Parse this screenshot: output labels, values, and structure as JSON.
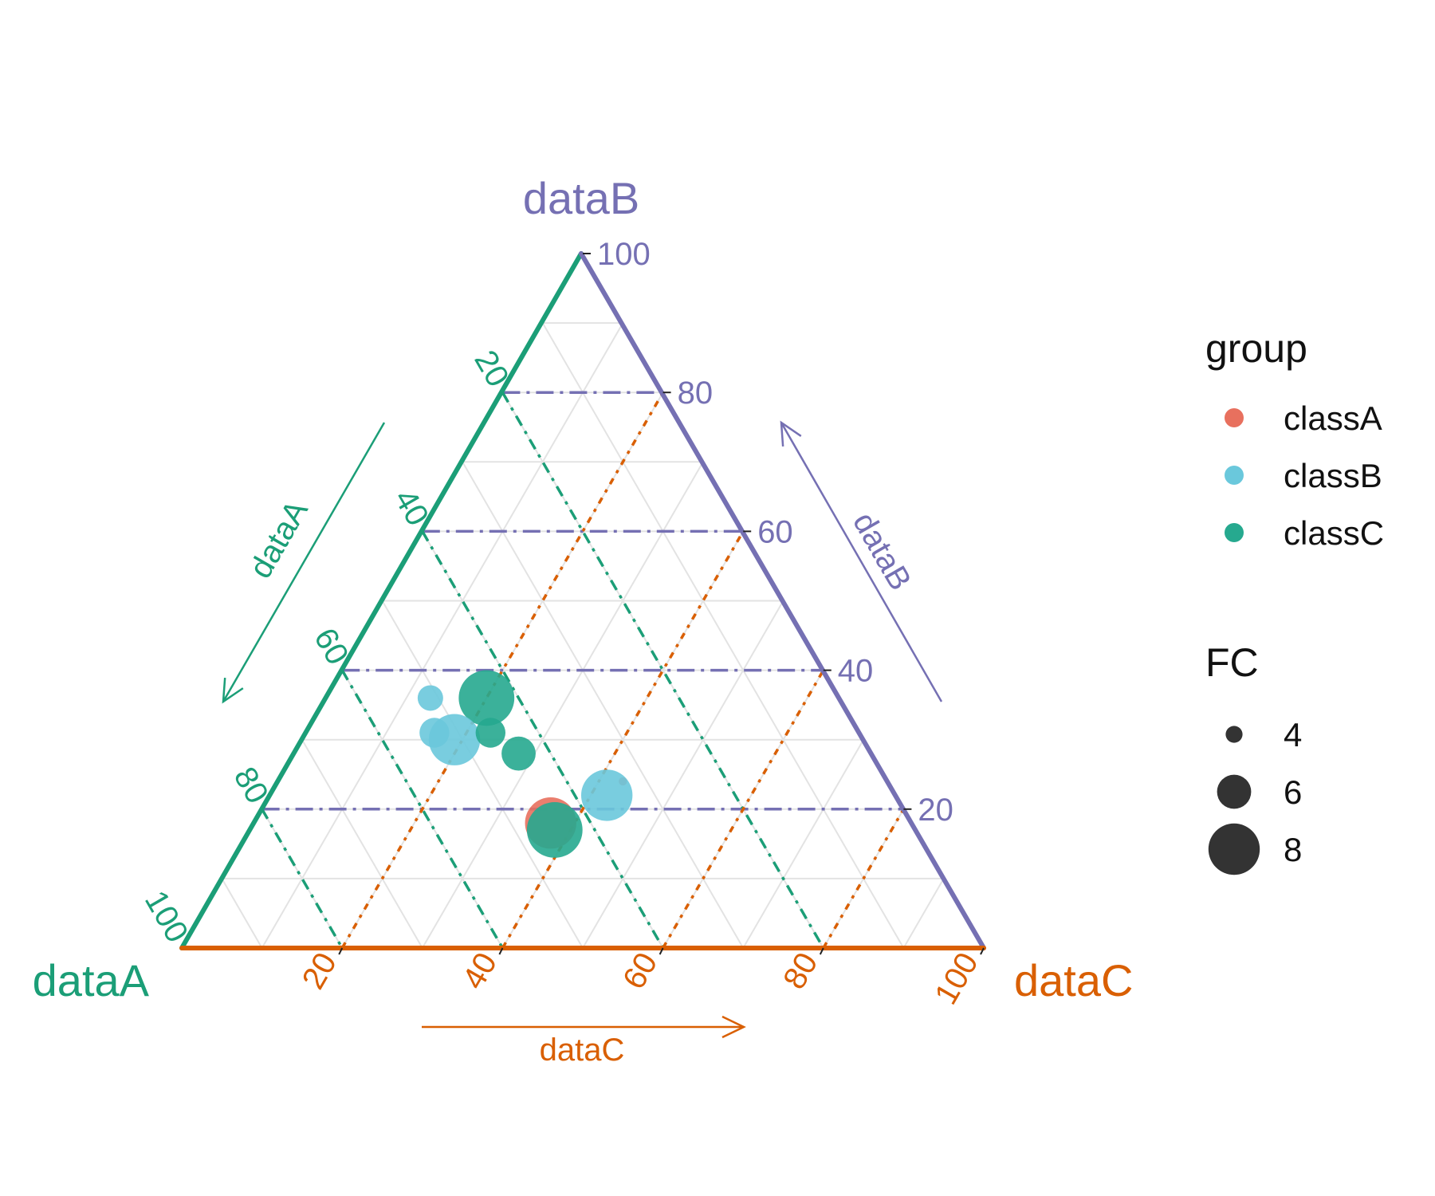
{
  "chart_data": {
    "type": "scatter",
    "subtype": "ternary",
    "title": "",
    "axes": {
      "A": {
        "label": "dataA",
        "arrow_label": "dataA",
        "color": "#1b9e77",
        "ticks": [
          20,
          40,
          60,
          80,
          100
        ]
      },
      "B": {
        "label": "dataB",
        "arrow_label": "dataB",
        "color": "#7570b3",
        "ticks": [
          20,
          40,
          60,
          80,
          100
        ]
      },
      "C": {
        "label": "dataC",
        "arrow_label": "dataC",
        "color": "#d95f02",
        "ticks": [
          20,
          40,
          60,
          80,
          100
        ]
      }
    },
    "grid": true,
    "reference_lines": {
      "A": [
        20,
        40,
        60,
        80
      ],
      "B": [
        20,
        40,
        60,
        80
      ],
      "C": [
        20,
        40,
        60,
        80
      ]
    },
    "groups": [
      {
        "name": "classA",
        "color": "#e8705e"
      },
      {
        "name": "classB",
        "color": "#6ac8dc"
      },
      {
        "name": "classC",
        "color": "#26a98f"
      }
    ],
    "points": [
      {
        "group": "classB",
        "A": 51,
        "B": 36,
        "C": 13,
        "FC": 5
      },
      {
        "group": "classC",
        "A": 44,
        "B": 36,
        "C": 20,
        "FC": 8.5
      },
      {
        "group": "classB",
        "A": 53,
        "B": 31,
        "C": 16,
        "FC": 5.5
      },
      {
        "group": "classB",
        "A": 51,
        "B": 30,
        "C": 19,
        "FC": 8
      },
      {
        "group": "classC",
        "A": 46,
        "B": 31,
        "C": 23,
        "FC": 5.5
      },
      {
        "group": "classC",
        "A": 44,
        "B": 28,
        "C": 28,
        "FC": 6
      },
      {
        "group": "classA",
        "A": 33,
        "B": 24,
        "C": 43,
        "FC": 3
      },
      {
        "group": "classB",
        "A": 36,
        "B": 22,
        "C": 42,
        "FC": 8
      },
      {
        "group": "classA",
        "A": 45,
        "B": 18,
        "C": 37,
        "FC": 8
      },
      {
        "group": "classC",
        "A": 45,
        "B": 17,
        "C": 38,
        "FC": 8.5
      }
    ],
    "legend": {
      "position": "right",
      "color_title": "group",
      "size_title": "FC",
      "size_entries": [
        4,
        6,
        8
      ]
    }
  }
}
